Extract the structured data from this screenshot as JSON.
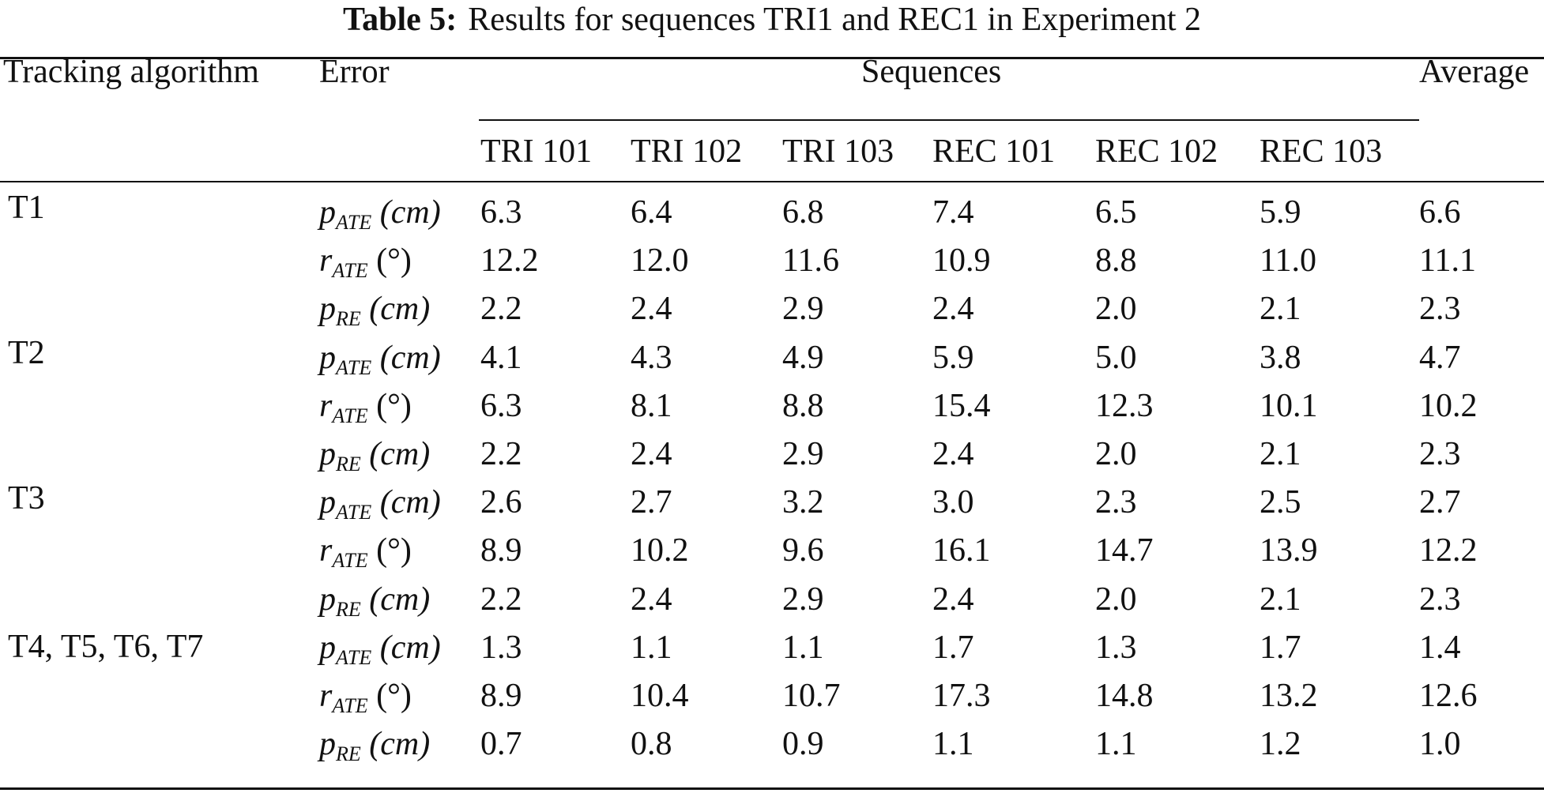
{
  "caption": {
    "label": "Table 5:",
    "text": "Results for sequences TRI1 and REC1 in Experiment 2"
  },
  "header": {
    "algorithm": "Tracking algorithm",
    "error": "Error",
    "sequences": "Sequences",
    "average": "Average",
    "columns": [
      "TRI 101",
      "TRI 102",
      "TRI 103",
      "REC 101",
      "REC 102",
      "REC 103"
    ]
  },
  "groups": [
    {
      "algorithm": "T1",
      "rows": [
        {
          "sym": "p",
          "sub": "ATE",
          "unit": "(cm)",
          "values": [
            "6.3",
            "6.4",
            "6.8",
            "7.4",
            "6.5",
            "5.9"
          ],
          "average": "6.6"
        },
        {
          "sym": "r",
          "sub": "ATE",
          "unit": "(°)",
          "values": [
            "12.2",
            "12.0",
            "11.6",
            "10.9",
            "8.8",
            "11.0"
          ],
          "average": "11.1"
        },
        {
          "sym": "p",
          "sub": "RE",
          "unit": "(cm)",
          "values": [
            "2.2",
            "2.4",
            "2.9",
            "2.4",
            "2.0",
            "2.1"
          ],
          "average": "2.3"
        }
      ]
    },
    {
      "algorithm": "T2",
      "rows": [
        {
          "sym": "p",
          "sub": "ATE",
          "unit": "(cm)",
          "values": [
            "4.1",
            "4.3",
            "4.9",
            "5.9",
            "5.0",
            "3.8"
          ],
          "average": "4.7"
        },
        {
          "sym": "r",
          "sub": "ATE",
          "unit": "(°)",
          "values": [
            "6.3",
            "8.1",
            "8.8",
            "15.4",
            "12.3",
            "10.1"
          ],
          "average": "10.2"
        },
        {
          "sym": "p",
          "sub": "RE",
          "unit": "(cm)",
          "values": [
            "2.2",
            "2.4",
            "2.9",
            "2.4",
            "2.0",
            "2.1"
          ],
          "average": "2.3"
        }
      ]
    },
    {
      "algorithm": "T3",
      "rows": [
        {
          "sym": "p",
          "sub": "ATE",
          "unit": "(cm)",
          "values": [
            "2.6",
            "2.7",
            "3.2",
            "3.0",
            "2.3",
            "2.5"
          ],
          "average": "2.7"
        },
        {
          "sym": "r",
          "sub": "ATE",
          "unit": "(°)",
          "values": [
            "8.9",
            "10.2",
            "9.6",
            "16.1",
            "14.7",
            "13.9"
          ],
          "average": "12.2"
        },
        {
          "sym": "p",
          "sub": "RE",
          "unit": "(cm)",
          "values": [
            "2.2",
            "2.4",
            "2.9",
            "2.4",
            "2.0",
            "2.1"
          ],
          "average": "2.3"
        }
      ]
    },
    {
      "algorithm": "T4, T5, T6, T7",
      "rows": [
        {
          "sym": "p",
          "sub": "ATE",
          "unit": "(cm)",
          "values": [
            "1.3",
            "1.1",
            "1.1",
            "1.7",
            "1.3",
            "1.7"
          ],
          "average": "1.4"
        },
        {
          "sym": "r",
          "sub": "ATE",
          "unit": "(°)",
          "values": [
            "8.9",
            "10.4",
            "10.7",
            "17.3",
            "14.8",
            "13.2"
          ],
          "average": "12.6"
        },
        {
          "sym": "p",
          "sub": "RE",
          "unit": "(cm)",
          "values": [
            "0.7",
            "0.8",
            "0.9",
            "1.1",
            "1.1",
            "1.2"
          ],
          "average": "1.0"
        }
      ]
    }
  ]
}
